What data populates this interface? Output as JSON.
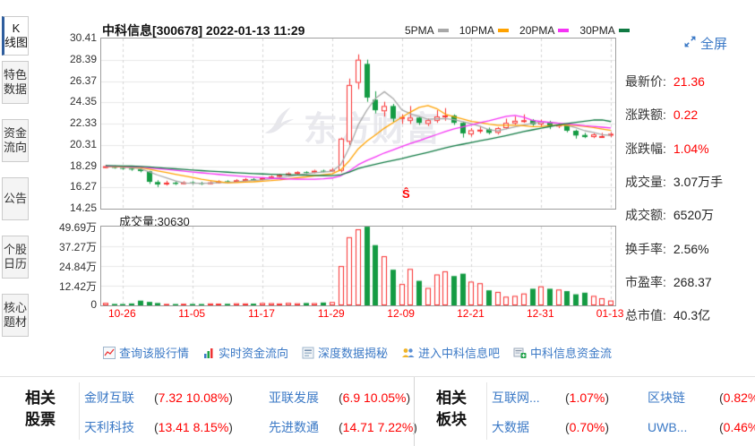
{
  "sidebar": {
    "tabs": [
      {
        "id": "kline",
        "label": "K\n线图",
        "active": true
      },
      {
        "id": "special-data",
        "label": "特色\n数据",
        "active": false
      },
      {
        "id": "fund-flow",
        "label": "资金\n流向",
        "active": false
      },
      {
        "id": "announcement",
        "label": "公告",
        "active": false
      },
      {
        "id": "stock-calendar",
        "label": "个股\n日历",
        "active": false
      },
      {
        "id": "core-theme",
        "label": "核心\n题材",
        "active": false
      }
    ]
  },
  "header": {
    "title": "中科信息[300678] 2022-01-13 11:29",
    "legend": [
      {
        "label": "5PMA",
        "color": "#a8a8a8"
      },
      {
        "label": "10PMA",
        "color": "#ffa200"
      },
      {
        "label": "20PMA",
        "color": "#f533f5"
      },
      {
        "label": "30PMA",
        "color": "#107a43"
      }
    ],
    "fullscreen_label": "全屏"
  },
  "chart_data": {
    "type": "candlestick+volume",
    "title": "中科信息[300678]",
    "price_axis": {
      "ticks": [
        "30.41",
        "28.39",
        "26.37",
        "24.35",
        "22.33",
        "20.31",
        "18.29",
        "16.27",
        "14.25"
      ],
      "max": 30.41,
      "min": 14.25
    },
    "volume_axis": {
      "ticks": [
        "49.69万",
        "37.27万",
        "24.84万",
        "12.42万",
        "0"
      ],
      "max": 496900
    },
    "x_axis": [
      {
        "label": "10-26",
        "index": 2
      },
      {
        "label": "11-05",
        "index": 10
      },
      {
        "label": "11-17",
        "index": 18
      },
      {
        "label": "11-29",
        "index": 26
      },
      {
        "label": "12-09",
        "index": 34
      },
      {
        "label": "12-21",
        "index": 42
      },
      {
        "label": "12-31",
        "index": 50
      },
      {
        "label": "01-13",
        "index": 58
      }
    ],
    "volume_title": {
      "label": "成交量:",
      "value": "30630"
    },
    "watermark": "东方财富",
    "marker": {
      "label": "Ŝ",
      "index": 35
    },
    "colors": {
      "up": "#f82e2e",
      "down": "#149b43"
    },
    "ma_periods": [
      5,
      10,
      20,
      30
    ],
    "pre_close_estimate": [
      18.55,
      18.6,
      18.5,
      18.45,
      18.5,
      18.4,
      18.45,
      18.35,
      18.4,
      18.3,
      18.42,
      18.35,
      18.3,
      18.38,
      18.28,
      18.35,
      18.3,
      18.25,
      18.32,
      18.28,
      18.3,
      18.22,
      18.28,
      18.25,
      18.3,
      18.2,
      18.26,
      18.3,
      18.22,
      18.26
    ],
    "series": {
      "dates": [
        "10-22",
        "10-25",
        "10-26",
        "10-27",
        "10-28",
        "10-29",
        "11-01",
        "11-02",
        "11-03",
        "11-04",
        "11-05",
        "11-08",
        "11-09",
        "11-10",
        "11-11",
        "11-12",
        "11-15",
        "11-16",
        "11-17",
        "11-18",
        "11-19",
        "11-22",
        "11-23",
        "11-24",
        "11-25",
        "11-26",
        "11-29",
        "11-30",
        "12-01",
        "12-02",
        "12-03",
        "12-06",
        "12-07",
        "12-08",
        "12-09",
        "12-10",
        "12-13",
        "12-14",
        "12-15",
        "12-16",
        "12-17",
        "12-20",
        "12-21",
        "12-22",
        "12-23",
        "12-24",
        "12-27",
        "12-28",
        "12-29",
        "12-30",
        "12-31",
        "01-04",
        "01-05",
        "01-06",
        "01-07",
        "01-10",
        "01-11",
        "01-12",
        "01-13"
      ],
      "open": [
        18.2,
        18.28,
        18.12,
        18.05,
        17.98,
        17.8,
        16.78,
        16.55,
        16.72,
        16.6,
        16.75,
        16.68,
        16.6,
        16.75,
        16.85,
        16.8,
        16.95,
        17.05,
        17.0,
        17.15,
        17.3,
        17.45,
        17.6,
        17.72,
        17.68,
        17.85,
        17.8,
        17.85,
        20.6,
        26.2,
        28.0,
        24.6,
        23.5,
        24.0,
        22.8,
        22.6,
        22.9,
        22.3,
        22.6,
        23.0,
        23.1,
        22.4,
        21.3,
        21.7,
        21.8,
        21.45,
        21.9,
        22.35,
        22.6,
        22.65,
        22.25,
        22.5,
        22.05,
        22.2,
        21.65,
        21.25,
        21.05,
        21.1,
        21.2
      ],
      "high": [
        18.4,
        18.35,
        18.25,
        18.2,
        18.1,
        17.85,
        16.95,
        16.9,
        16.85,
        16.85,
        16.85,
        16.8,
        16.85,
        16.95,
        16.95,
        17.05,
        17.15,
        17.15,
        17.25,
        17.4,
        17.55,
        17.7,
        17.8,
        17.8,
        17.95,
        17.95,
        18.1,
        21.0,
        26.6,
        28.9,
        28.4,
        25.4,
        24.4,
        24.2,
        23.2,
        24.0,
        23.0,
        22.8,
        23.6,
        23.8,
        23.2,
        22.5,
        21.9,
        22.1,
        21.95,
        22.0,
        22.8,
        23.0,
        23.2,
        22.75,
        22.7,
        22.6,
        22.4,
        22.3,
        21.75,
        21.45,
        21.4,
        21.45,
        21.5
      ],
      "low": [
        18.1,
        18.05,
        17.95,
        17.85,
        17.7,
        16.6,
        16.3,
        16.45,
        16.5,
        16.55,
        16.55,
        16.5,
        16.55,
        16.65,
        16.7,
        16.75,
        16.85,
        16.9,
        16.95,
        17.05,
        17.2,
        17.35,
        17.5,
        17.55,
        17.6,
        17.7,
        17.72,
        17.7,
        20.3,
        25.6,
        24.4,
        23.3,
        23.0,
        22.5,
        22.3,
        22.3,
        22.2,
        22.1,
        22.4,
        22.6,
        22.2,
        21.0,
        21.1,
        21.4,
        21.3,
        21.3,
        21.8,
        22.2,
        22.4,
        22.1,
        22.05,
        21.8,
        21.9,
        21.5,
        20.9,
        20.95,
        20.95,
        21.0,
        21.05
      ],
      "close": [
        18.28,
        18.12,
        18.05,
        17.98,
        17.82,
        16.8,
        16.55,
        16.72,
        16.6,
        16.75,
        16.68,
        16.6,
        16.75,
        16.85,
        16.8,
        16.95,
        17.05,
        17.0,
        17.15,
        17.3,
        17.45,
        17.6,
        17.72,
        17.68,
        17.85,
        17.8,
        17.95,
        20.9,
        26.0,
        28.4,
        24.8,
        23.6,
        24.0,
        22.8,
        22.95,
        22.9,
        22.4,
        22.65,
        23.0,
        23.1,
        22.4,
        21.4,
        21.7,
        21.75,
        21.45,
        21.9,
        22.4,
        22.6,
        22.65,
        22.25,
        22.5,
        22.1,
        22.25,
        21.65,
        21.2,
        21.05,
        21.3,
        21.14,
        21.36
      ],
      "volume": [
        16000,
        9000,
        8000,
        12000,
        30000,
        22000,
        15000,
        9000,
        8000,
        10000,
        9000,
        8000,
        12000,
        11000,
        10000,
        13000,
        12000,
        11000,
        15000,
        14000,
        12000,
        16000,
        13000,
        15000,
        14000,
        18000,
        21000,
        248000,
        430000,
        480000,
        496000,
        380000,
        310000,
        225000,
        135000,
        230000,
        155000,
        110000,
        195000,
        215000,
        185000,
        200000,
        150000,
        140000,
        95000,
        85000,
        55000,
        60000,
        75000,
        105000,
        120000,
        105000,
        100000,
        90000,
        70000,
        80000,
        60000,
        45000,
        30630
      ]
    }
  },
  "stats": {
    "rows": [
      {
        "label": "最新价:",
        "value": "21.36",
        "accent": true
      },
      {
        "label": "涨跌额:",
        "value": "0.22",
        "accent": true
      },
      {
        "label": "涨跌幅:",
        "value": "1.04%",
        "accent": true
      },
      {
        "label": "成交量:",
        "value": "3.07万手",
        "accent": false
      },
      {
        "label": "成交额:",
        "value": "6520万",
        "accent": false
      },
      {
        "label": "换手率:",
        "value": "2.56%",
        "accent": false
      },
      {
        "label": "市盈率:",
        "value": "268.37",
        "accent": false
      },
      {
        "label": "总市值:",
        "value": "40.3亿",
        "accent": false
      }
    ]
  },
  "links": [
    {
      "id": "view-quote",
      "icon": "line-chart-icon",
      "label": "查询该股行情"
    },
    {
      "id": "realtime-fundflow",
      "icon": "bar-chart-icon",
      "label": "实时资金流向"
    },
    {
      "id": "deep-data",
      "icon": "document-icon",
      "label": "深度数据揭秘"
    },
    {
      "id": "stock-bar",
      "icon": "people-icon",
      "label": "进入中科信息吧"
    },
    {
      "id": "stock-fundflow",
      "icon": "money-flow-icon",
      "label": "中科信息资金流"
    }
  ],
  "related_stocks": {
    "title": "相关\n股票",
    "items": [
      {
        "name": "金财互联",
        "lparen": "(",
        "value": "7.32 10.08%",
        "rparen": ")"
      },
      {
        "name": "亚联发展",
        "lparen": "(",
        "value": "6.9 10.05%",
        "rparen": ")"
      },
      {
        "name": "天利科技",
        "lparen": "(",
        "value": "13.41 8.15%",
        "rparen": ")"
      },
      {
        "name": "先进数通",
        "lparen": "(",
        "value": "14.71 7.22%",
        "rparen": ")"
      }
    ]
  },
  "related_boards": {
    "title": "相关\n板块",
    "items": [
      {
        "name": "互联网...",
        "lparen": "(",
        "value": "1.07%",
        "rparen": ")"
      },
      {
        "name": "区块链",
        "lparen": "(",
        "value": "0.82%",
        "rparen": ")"
      },
      {
        "name": "大数据",
        "lparen": "(",
        "value": "0.70%",
        "rparen": ")"
      },
      {
        "name": "UWB...",
        "lparen": "(",
        "value": "0.46%",
        "rparen": ")"
      }
    ]
  }
}
